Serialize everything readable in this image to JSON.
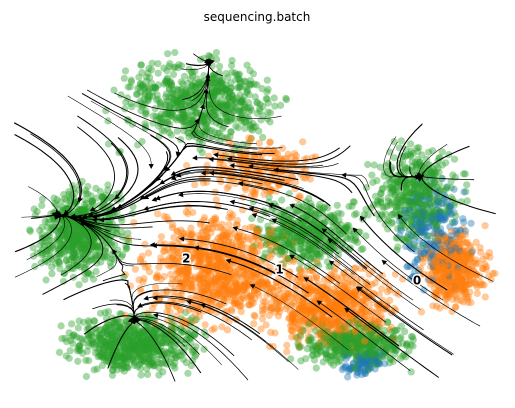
{
  "chart_data": {
    "type": "scatter",
    "title": "sequencing.batch",
    "xlabel": "",
    "ylabel": "",
    "grid": false,
    "legend": "none",
    "embedding_overlay": "velocity-streamlines",
    "series": [
      {
        "color": "#2ca02c",
        "regions": [
          {
            "cx": 0.38,
            "cy": 0.2,
            "rx": 0.22,
            "ry": 0.16,
            "weight": 3
          },
          {
            "cx": 0.14,
            "cy": 0.55,
            "rx": 0.12,
            "ry": 0.16,
            "weight": 3
          },
          {
            "cx": 0.25,
            "cy": 0.85,
            "rx": 0.18,
            "ry": 0.1,
            "weight": 3
          },
          {
            "cx": 0.6,
            "cy": 0.55,
            "rx": 0.14,
            "ry": 0.12,
            "weight": 2
          },
          {
            "cx": 0.82,
            "cy": 0.45,
            "rx": 0.12,
            "ry": 0.18,
            "weight": 2
          },
          {
            "cx": 0.7,
            "cy": 0.85,
            "rx": 0.16,
            "ry": 0.08,
            "weight": 2
          }
        ]
      },
      {
        "color": "#ff7f0e",
        "regions": [
          {
            "cx": 0.42,
            "cy": 0.65,
            "rx": 0.2,
            "ry": 0.2,
            "weight": 4
          },
          {
            "cx": 0.65,
            "cy": 0.75,
            "rx": 0.18,
            "ry": 0.14,
            "weight": 3
          },
          {
            "cx": 0.9,
            "cy": 0.65,
            "rx": 0.09,
            "ry": 0.14,
            "weight": 2
          },
          {
            "cx": 0.5,
            "cy": 0.38,
            "rx": 0.16,
            "ry": 0.1,
            "weight": 1
          }
        ]
      },
      {
        "color": "#1f77b4",
        "regions": [
          {
            "cx": 0.86,
            "cy": 0.55,
            "rx": 0.09,
            "ry": 0.18,
            "weight": 1
          },
          {
            "cx": 0.72,
            "cy": 0.9,
            "rx": 0.06,
            "ry": 0.05,
            "weight": 0.4
          }
        ]
      }
    ],
    "cluster_labels": [
      {
        "text": "2",
        "x": 0.355,
        "y": 0.63
      },
      {
        "text": "1",
        "x": 0.545,
        "y": 0.66
      },
      {
        "text": "0",
        "x": 0.825,
        "y": 0.69
      }
    ]
  }
}
